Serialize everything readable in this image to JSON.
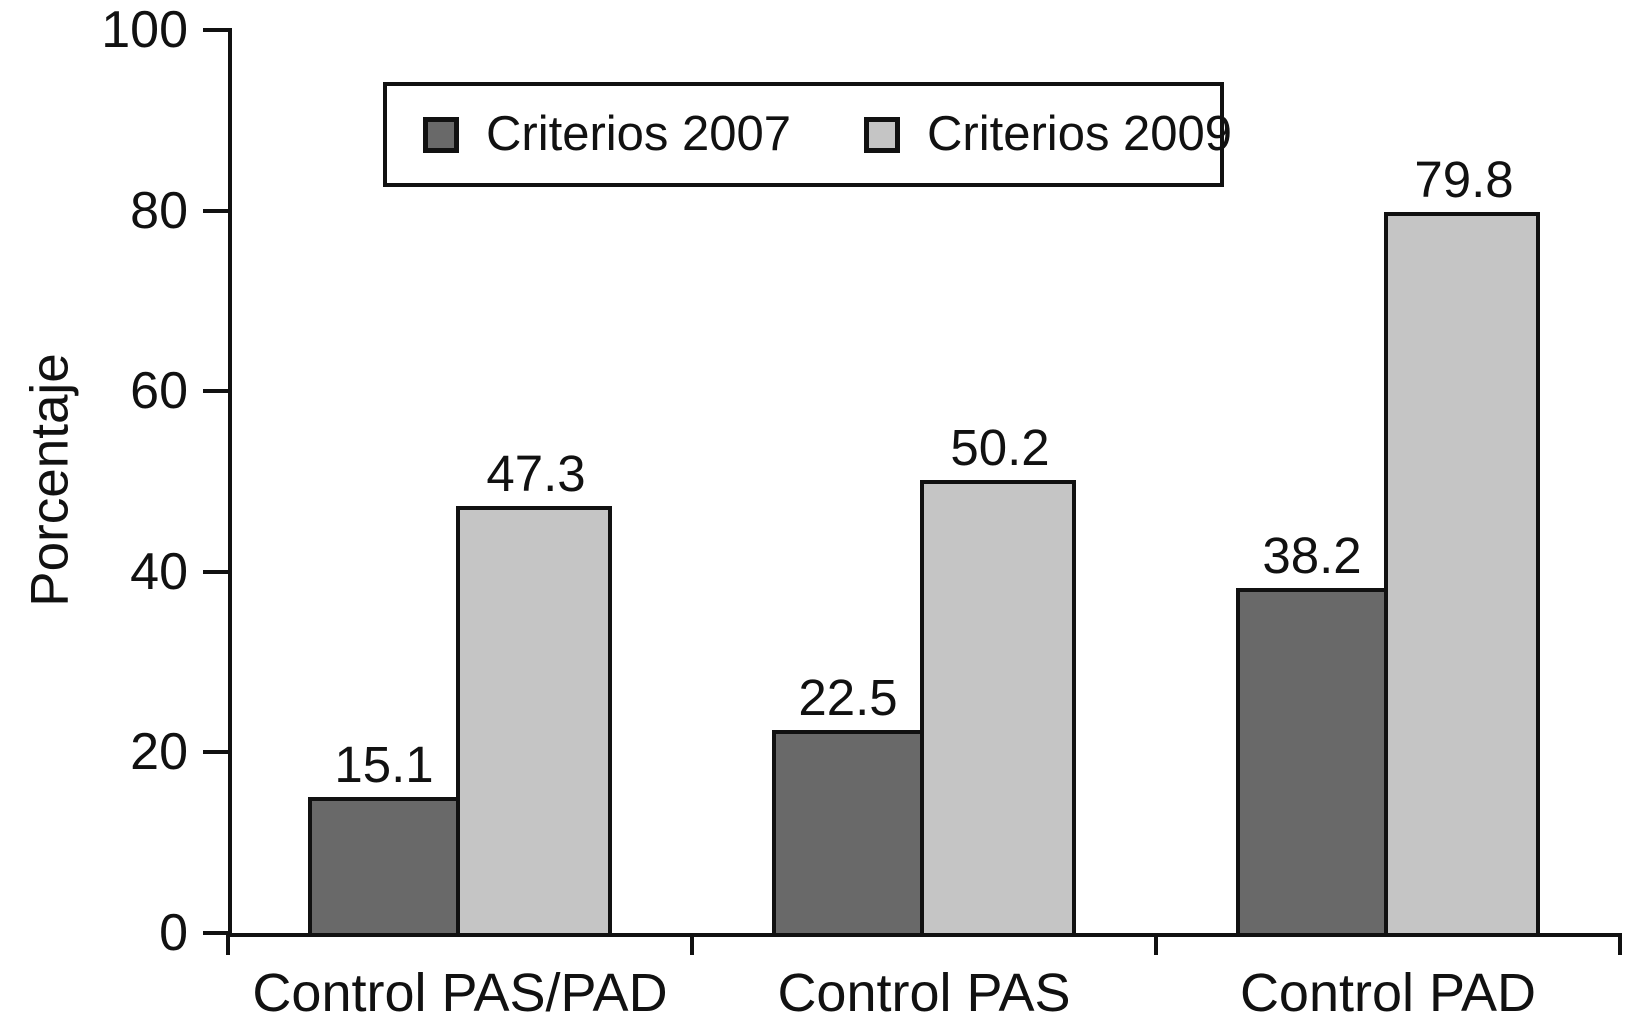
{
  "chart_data": {
    "type": "bar",
    "title": "",
    "ylabel": "Porcentaje",
    "xlabel": "",
    "ylim": [
      0,
      100
    ],
    "yticks": [
      0,
      20,
      40,
      60,
      80,
      100
    ],
    "grid": false,
    "legend_position": "top-center-inside",
    "categories": [
      "Control PAS/PAD",
      "Control PAS",
      "Control PAD"
    ],
    "series": [
      {
        "name": "Criterios 2007",
        "color": "#696969",
        "values": [
          15.1,
          22.5,
          38.2
        ]
      },
      {
        "name": "Criterios 2009",
        "color": "#c5c5c5",
        "values": [
          47.3,
          50.2,
          79.8
        ]
      }
    ],
    "bar_edge_color": "#111111",
    "value_labels": {
      "Control PAS/PAD": [
        "15.1",
        "47.3"
      ],
      "Control PAS": [
        "22.5",
        "50.2"
      ],
      "Control PAD": [
        "38.2",
        "79.8"
      ]
    }
  }
}
